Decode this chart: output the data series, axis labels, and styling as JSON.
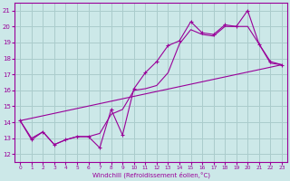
{
  "x_ticks": [
    0,
    1,
    2,
    3,
    4,
    5,
    6,
    7,
    8,
    9,
    10,
    11,
    12,
    13,
    14,
    15,
    16,
    17,
    18,
    19,
    20,
    21,
    22,
    23
  ],
  "xlabel": "Windchill (Refroidissement éolien,°C)",
  "ylabel_ticks": [
    12,
    13,
    14,
    15,
    16,
    17,
    18,
    19,
    20,
    21
  ],
  "xlim": [
    -0.5,
    23.5
  ],
  "ylim": [
    11.5,
    21.5
  ],
  "bg_color": "#cce8e8",
  "line_color": "#990099",
  "grid_color": "#aacccc",
  "line_jagged": {
    "x": [
      0,
      1,
      2,
      3,
      4,
      5,
      6,
      7,
      8,
      9,
      10,
      11,
      12,
      13,
      14,
      15,
      16,
      17,
      18,
      19,
      20,
      21,
      22,
      23
    ],
    "y": [
      14.1,
      12.9,
      13.4,
      12.6,
      12.9,
      13.1,
      13.1,
      12.4,
      14.8,
      13.2,
      16.1,
      17.1,
      17.8,
      18.8,
      19.1,
      20.3,
      19.6,
      19.5,
      20.1,
      20.0,
      21.0,
      18.9,
      17.8,
      17.6
    ]
  },
  "line_smooth": {
    "x": [
      0,
      1,
      2,
      3,
      4,
      5,
      6,
      7,
      8,
      9,
      10,
      11,
      12,
      13,
      14,
      15,
      16,
      17,
      18,
      19,
      20,
      21,
      22,
      23
    ],
    "y": [
      14.1,
      13.0,
      13.4,
      12.6,
      12.9,
      13.1,
      13.1,
      13.3,
      14.5,
      14.8,
      16.0,
      16.1,
      16.3,
      17.1,
      18.9,
      19.8,
      19.5,
      19.4,
      20.0,
      20.0,
      20.0,
      18.9,
      17.7,
      17.6
    ]
  },
  "line_diag": {
    "x": [
      0,
      23
    ],
    "y": [
      14.1,
      17.6
    ]
  }
}
